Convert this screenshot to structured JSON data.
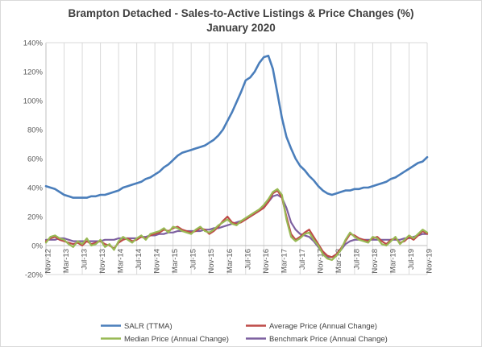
{
  "chart_data": {
    "type": "line",
    "title": "Brampton Detached - Sales-to-Active Listings & Price Changes (%)",
    "subtitle": "January 2020",
    "ylim": [
      -20,
      140
    ],
    "y_ticks": [
      "-20%",
      "0%",
      "20%",
      "40%",
      "60%",
      "80%",
      "100%",
      "120%",
      "140%"
    ],
    "x_tick_labels": [
      "Nov-12",
      "Mar-13",
      "Jul-13",
      "Nov-13",
      "Mar-14",
      "Jul-14",
      "Nov-14",
      "Mar-15",
      "Jul-15",
      "Nov-15",
      "Mar-16",
      "Jul-16",
      "Nov-16",
      "Mar-17",
      "Jul-17",
      "Nov-17",
      "Mar-18",
      "Jul-18",
      "Nov-18",
      "Mar-19",
      "Jul-19",
      "Nov-19"
    ],
    "grid": "vertical",
    "legend_position": "bottom",
    "series": [
      {
        "name": "SALR (TTMA)",
        "color": "#4a7ebb",
        "values": [
          41,
          40,
          39,
          37,
          35,
          34,
          33,
          33,
          33,
          33,
          34,
          34,
          35,
          35,
          36,
          37,
          38,
          40,
          41,
          42,
          43,
          44,
          46,
          47,
          49,
          51,
          54,
          56,
          59,
          62,
          64,
          65,
          66,
          67,
          68,
          69,
          71,
          73,
          76,
          80,
          86,
          92,
          99,
          106,
          114,
          116,
          120,
          126,
          130,
          131,
          122,
          105,
          88,
          75,
          67,
          60,
          55,
          52,
          48,
          45,
          41,
          38,
          36,
          35,
          36,
          37,
          38,
          38,
          39,
          39,
          40,
          40,
          41,
          42,
          43,
          44,
          46,
          47,
          49,
          51,
          53,
          55,
          57,
          58,
          61
        ]
      },
      {
        "name": "Average Price (Annual Change)",
        "color": "#be4b48",
        "values": [
          3,
          5,
          6,
          4,
          3,
          2,
          1,
          2,
          0,
          3,
          1,
          2,
          3,
          1,
          0,
          -2,
          2,
          4,
          5,
          3,
          4,
          6,
          5,
          7,
          8,
          9,
          11,
          10,
          12,
          13,
          11,
          10,
          9,
          10,
          12,
          11,
          8,
          10,
          13,
          17,
          20,
          16,
          15,
          16,
          18,
          20,
          22,
          24,
          26,
          30,
          36,
          38,
          33,
          20,
          8,
          4,
          6,
          9,
          11,
          6,
          1,
          -4,
          -7,
          -8,
          -6,
          -2,
          3,
          8,
          7,
          5,
          4,
          3,
          5,
          6,
          3,
          1,
          4,
          5,
          2,
          3,
          6,
          4,
          7,
          10,
          8
        ]
      },
      {
        "name": "Median Price (Annual Change)",
        "color": "#98b954",
        "values": [
          2,
          6,
          7,
          5,
          4,
          1,
          -1,
          3,
          1,
          5,
          0,
          1,
          4,
          -1,
          1,
          -3,
          3,
          6,
          4,
          2,
          5,
          7,
          4,
          8,
          9,
          10,
          12,
          9,
          13,
          12,
          10,
          9,
          8,
          11,
          13,
          10,
          9,
          11,
          14,
          16,
          18,
          15,
          14,
          17,
          19,
          21,
          23,
          25,
          28,
          32,
          37,
          39,
          35,
          18,
          6,
          3,
          5,
          8,
          9,
          4,
          0,
          -6,
          -9,
          -10,
          -7,
          -3,
          4,
          9,
          6,
          4,
          3,
          2,
          6,
          5,
          1,
          0,
          3,
          6,
          1,
          4,
          7,
          5,
          8,
          11,
          9
        ]
      },
      {
        "name": "Benchmark Price (Annual Change)",
        "color": "#7d60a0",
        "values": [
          4,
          4,
          4,
          5,
          5,
          4,
          3,
          3,
          3,
          3,
          3,
          3,
          3,
          4,
          4,
          4,
          5,
          5,
          5,
          5,
          5,
          6,
          6,
          7,
          7,
          8,
          8,
          9,
          9,
          10,
          10,
          10,
          10,
          10,
          10,
          11,
          11,
          12,
          12,
          13,
          14,
          15,
          16,
          17,
          18,
          20,
          22,
          24,
          27,
          30,
          34,
          35,
          33,
          26,
          16,
          11,
          8,
          7,
          6,
          3,
          -1,
          -5,
          -8,
          -8,
          -6,
          -3,
          1,
          3,
          4,
          4,
          4,
          4,
          4,
          4,
          4,
          4,
          4,
          4,
          4,
          5,
          5,
          6,
          7,
          8,
          8
        ]
      }
    ]
  }
}
